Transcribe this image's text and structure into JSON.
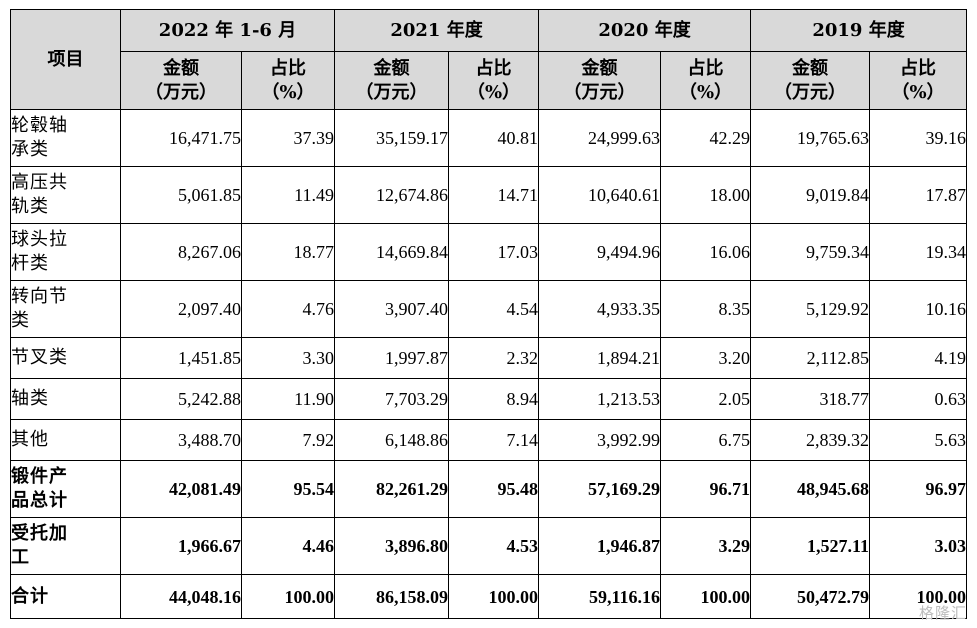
{
  "header": {
    "item_label": "项目",
    "periods": [
      "2022 年 1-6 月",
      "2021 年度",
      "2020 年度",
      "2019 年度"
    ],
    "amount_label": [
      "金额",
      "（万元）"
    ],
    "share_label": [
      "占比",
      "（%）"
    ]
  },
  "rows": [
    {
      "label": [
        "轮毂轴",
        "承类"
      ],
      "values": [
        "16,471.75",
        "37.39",
        "35,159.17",
        "40.81",
        "24,999.63",
        "42.29",
        "19,765.63",
        "39.16"
      ]
    },
    {
      "label": [
        "高压共",
        "轨类"
      ],
      "values": [
        "5,061.85",
        "11.49",
        "12,674.86",
        "14.71",
        "10,640.61",
        "18.00",
        "9,019.84",
        "17.87"
      ]
    },
    {
      "label": [
        "球头拉",
        "杆类"
      ],
      "values": [
        "8,267.06",
        "18.77",
        "14,669.84",
        "17.03",
        "9,494.96",
        "16.06",
        "9,759.34",
        "19.34"
      ]
    },
    {
      "label": [
        "转向节",
        "类"
      ],
      "values": [
        "2,097.40",
        "4.76",
        "3,907.40",
        "4.54",
        "4,933.35",
        "8.35",
        "5,129.92",
        "10.16"
      ]
    },
    {
      "label": [
        "节叉类"
      ],
      "values": [
        "1,451.85",
        "3.30",
        "1,997.87",
        "2.32",
        "1,894.21",
        "3.20",
        "2,112.85",
        "4.19"
      ]
    },
    {
      "label": [
        "轴类"
      ],
      "values": [
        "5,242.88",
        "11.90",
        "7,703.29",
        "8.94",
        "1,213.53",
        "2.05",
        "318.77",
        "0.63"
      ]
    },
    {
      "label": [
        "其他"
      ],
      "values": [
        "3,488.70",
        "7.92",
        "6,148.86",
        "7.14",
        "3,992.99",
        "6.75",
        "2,839.32",
        "5.63"
      ]
    },
    {
      "label": [
        "锻件产",
        "品总计"
      ],
      "bold": true,
      "values": [
        "42,081.49",
        "95.54",
        "82,261.29",
        "95.48",
        "57,169.29",
        "96.71",
        "48,945.68",
        "96.97"
      ]
    },
    {
      "label": [
        "受托加",
        "工"
      ],
      "bold": true,
      "values": [
        "1,966.67",
        "4.46",
        "3,896.80",
        "4.53",
        "1,946.87",
        "3.29",
        "1,527.11",
        "3.03"
      ]
    },
    {
      "label": [
        "合计"
      ],
      "bold": true,
      "values": [
        "44,048.16",
        "100.00",
        "86,158.09",
        "100.00",
        "59,116.16",
        "100.00",
        "50,472.79",
        "100.00"
      ]
    }
  ],
  "watermark": "格隆汇"
}
